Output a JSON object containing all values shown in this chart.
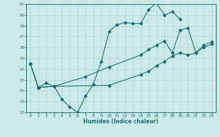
{
  "xlabel": "Humidex (Indice chaleur)",
  "xlim": [
    -0.5,
    23.5
  ],
  "ylim": [
    10,
    20
  ],
  "xticks": [
    0,
    1,
    2,
    3,
    4,
    5,
    6,
    7,
    8,
    9,
    10,
    11,
    12,
    13,
    14,
    15,
    16,
    17,
    18,
    19,
    20,
    21,
    22,
    23
  ],
  "yticks": [
    10,
    11,
    12,
    13,
    14,
    15,
    16,
    17,
    18,
    19,
    20
  ],
  "bg_color": "#cce8e8",
  "line_color": "#1a7070",
  "grid_color": "#aad4d4",
  "line1_x": [
    0,
    1,
    2,
    3,
    4,
    5,
    6,
    7,
    8,
    9,
    10,
    11,
    12,
    13,
    14,
    15,
    16,
    17,
    18,
    19
  ],
  "line1_y": [
    14.5,
    12.3,
    12.7,
    12.4,
    11.2,
    10.5,
    10.0,
    11.5,
    12.6,
    14.7,
    17.5,
    18.1,
    18.3,
    18.2,
    18.2,
    19.5,
    20.1,
    19.0,
    19.3,
    18.6
  ],
  "line2_x": [
    0,
    1,
    3,
    7,
    10,
    14,
    15,
    16,
    17,
    18,
    19,
    20,
    21,
    22,
    23
  ],
  "line2_y": [
    14.5,
    12.3,
    12.4,
    13.3,
    14.2,
    15.3,
    15.8,
    16.2,
    16.6,
    15.5,
    17.6,
    17.8,
    15.5,
    16.2,
    16.5
  ],
  "line3_x": [
    0,
    1,
    3,
    10,
    14,
    15,
    16,
    17,
    18,
    19,
    20,
    21,
    22,
    23
  ],
  "line3_y": [
    14.5,
    12.3,
    12.4,
    12.5,
    13.5,
    13.8,
    14.3,
    14.7,
    15.2,
    15.5,
    15.3,
    15.5,
    16.0,
    16.3
  ]
}
